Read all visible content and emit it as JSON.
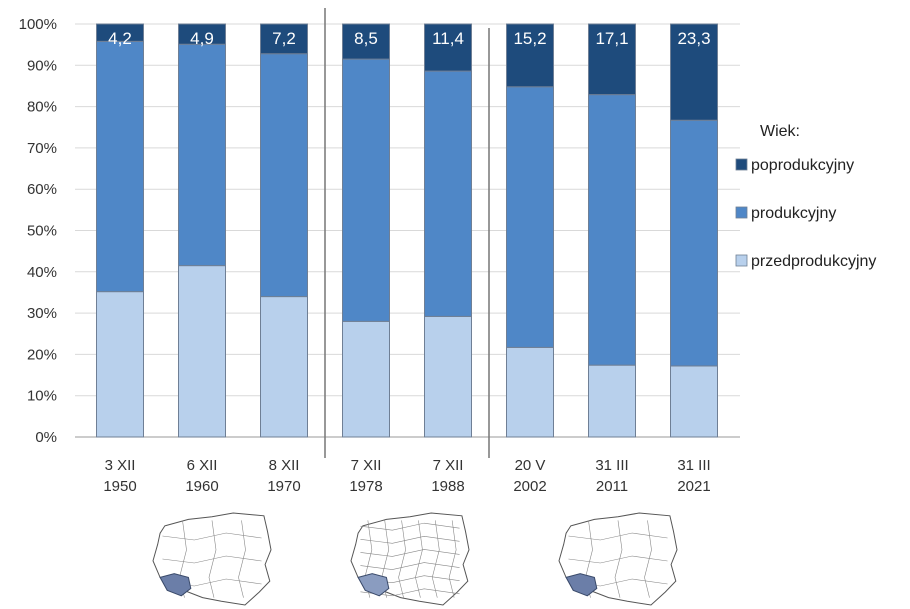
{
  "chart_data": {
    "type": "bar",
    "stacked": true,
    "percent": true,
    "categories": [
      [
        "3 XII",
        "1950"
      ],
      [
        "6 XII",
        "1960"
      ],
      [
        "8 XII",
        "1970"
      ],
      [
        "7 XII",
        "1978"
      ],
      [
        "7 XII",
        "1988"
      ],
      [
        "20 V",
        "2002"
      ],
      [
        "31 III",
        "2011"
      ],
      [
        "31 III",
        "2021"
      ]
    ],
    "series": [
      {
        "name": "przedprodukcyjny",
        "color": "#b8d0ec",
        "values": [
          35.2,
          41.5,
          34.0,
          28.0,
          29.2,
          21.7,
          17.4,
          17.2
        ]
      },
      {
        "name": "produkcyjny",
        "color": "#4f87c7",
        "values": [
          60.6,
          53.6,
          58.8,
          63.5,
          59.4,
          63.1,
          65.5,
          59.5
        ]
      },
      {
        "name": "poprodukcyjny",
        "color": "#1e4b7c",
        "values": [
          4.2,
          4.9,
          7.2,
          8.5,
          11.4,
          15.2,
          17.1,
          23.3
        ]
      }
    ],
    "data_labels": [
      "4,2",
      "4,9",
      "7,2",
      "8,5",
      "11,4",
      "15,2",
      "17,1",
      "23,3"
    ],
    "y_ticks": [
      "0%",
      "10%",
      "20%",
      "30%",
      "40%",
      "50%",
      "60%",
      "70%",
      "80%",
      "90%",
      "100%"
    ],
    "ylim": [
      0,
      100
    ],
    "legend_title": "Wiek:",
    "legend_order": [
      "poprodukcyjny",
      "produkcyjny",
      "przedprodukcyjny"
    ],
    "legend_position": "right",
    "grid": true,
    "period_separators_after": [
      2,
      4
    ]
  },
  "maps": [
    {
      "icon": "poland-map-icon",
      "highlight": "#6b7ea8"
    },
    {
      "icon": "poland-map-icon",
      "highlight": "#8a9cc0"
    },
    {
      "icon": "poland-map-icon",
      "highlight": "#6b7ea8"
    }
  ]
}
